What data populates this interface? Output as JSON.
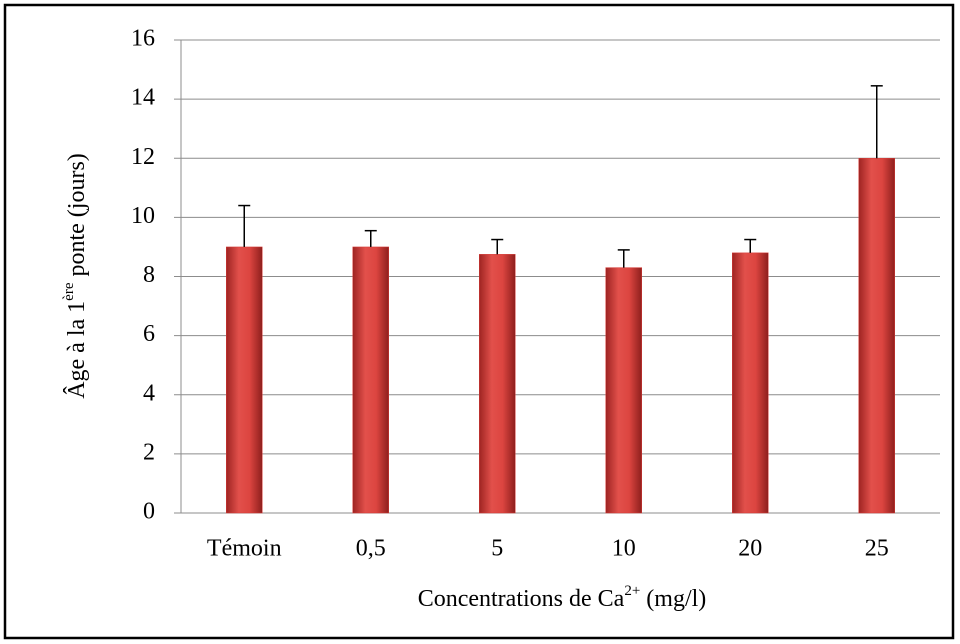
{
  "chart_data": {
    "type": "bar",
    "x_label": [
      "Concentrations de Ca",
      "2+",
      " (mg/l)"
    ],
    "y_label": [
      "Âge à la 1",
      "ère",
      " ponte (jours)"
    ],
    "categories": [
      "Témoin",
      "0,5",
      "5",
      "10",
      "20",
      "25"
    ],
    "values": [
      9,
      9,
      8.75,
      8.3,
      8.8,
      12
    ],
    "errors": [
      1.4,
      0.55,
      0.5,
      0.6,
      0.45,
      2.45
    ],
    "color": "#d63b37",
    "ylim": [
      0,
      16
    ],
    "yticks": [
      0,
      2,
      4,
      6,
      8,
      10,
      12,
      14,
      16
    ],
    "grid": true
  }
}
